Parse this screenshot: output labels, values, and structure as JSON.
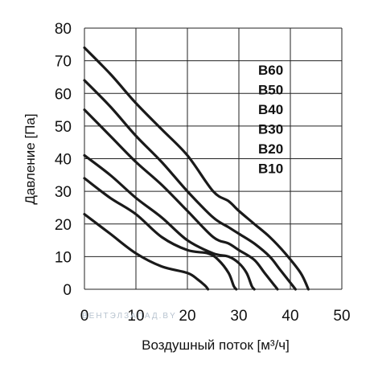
{
  "chart_data": {
    "type": "line",
    "title": "",
    "xlabel": "Воздушный поток [м³/ч]",
    "ylabel": "Давление [Па]",
    "xlim": [
      0,
      50
    ],
    "ylim": [
      0,
      80
    ],
    "xticks": [
      "0",
      "10",
      "20",
      "30",
      "40",
      "50"
    ],
    "yticks": [
      "0",
      "10",
      "20",
      "30",
      "40",
      "50",
      "60",
      "70",
      "80"
    ],
    "grid": true,
    "legend": "inline-labels top-right",
    "watermark": "ВЕНТЭЛЗАПАД.BY",
    "line_color": "#1a1a1a",
    "series": [
      {
        "name": "B60",
        "points": [
          [
            0,
            74
          ],
          [
            5,
            66
          ],
          [
            10,
            57
          ],
          [
            15,
            49
          ],
          [
            20,
            41
          ],
          [
            25,
            30
          ],
          [
            28,
            27
          ],
          [
            30,
            24
          ],
          [
            33,
            20
          ],
          [
            36,
            16
          ],
          [
            39,
            11
          ],
          [
            42,
            5
          ],
          [
            43.5,
            0
          ]
        ]
      },
      {
        "name": "B50",
        "points": [
          [
            0,
            64
          ],
          [
            5,
            56
          ],
          [
            10,
            47
          ],
          [
            15,
            39
          ],
          [
            20,
            30
          ],
          [
            25,
            22
          ],
          [
            28,
            19
          ],
          [
            30,
            17
          ],
          [
            33,
            14
          ],
          [
            36,
            10
          ],
          [
            38,
            6
          ],
          [
            40,
            2
          ],
          [
            41,
            0
          ]
        ]
      },
      {
        "name": "B40",
        "points": [
          [
            0,
            55
          ],
          [
            5,
            47
          ],
          [
            10,
            39
          ],
          [
            15,
            32
          ],
          [
            20,
            24
          ],
          [
            25,
            16
          ],
          [
            28,
            14
          ],
          [
            30,
            12
          ],
          [
            33,
            9
          ],
          [
            35,
            5
          ],
          [
            37,
            1
          ],
          [
            37.5,
            0
          ]
        ]
      },
      {
        "name": "B30",
        "points": [
          [
            0,
            41
          ],
          [
            5,
            35
          ],
          [
            10,
            28
          ],
          [
            15,
            22
          ],
          [
            20,
            15
          ],
          [
            25,
            11
          ],
          [
            28,
            10
          ],
          [
            30,
            8
          ],
          [
            31.5,
            5
          ],
          [
            32.5,
            1
          ],
          [
            33,
            0
          ]
        ]
      },
      {
        "name": "B20",
        "points": [
          [
            0,
            34
          ],
          [
            5,
            28
          ],
          [
            10,
            23
          ],
          [
            15,
            16
          ],
          [
            20,
            12
          ],
          [
            24,
            11
          ],
          [
            26,
            9
          ],
          [
            28,
            5
          ],
          [
            29,
            1
          ],
          [
            29.5,
            0
          ]
        ]
      },
      {
        "name": "B10",
        "points": [
          [
            0,
            23
          ],
          [
            5,
            17
          ],
          [
            10,
            11
          ],
          [
            15,
            7
          ],
          [
            20,
            5
          ],
          [
            22,
            3
          ],
          [
            23.5,
            1
          ],
          [
            24,
            0
          ]
        ]
      }
    ]
  }
}
